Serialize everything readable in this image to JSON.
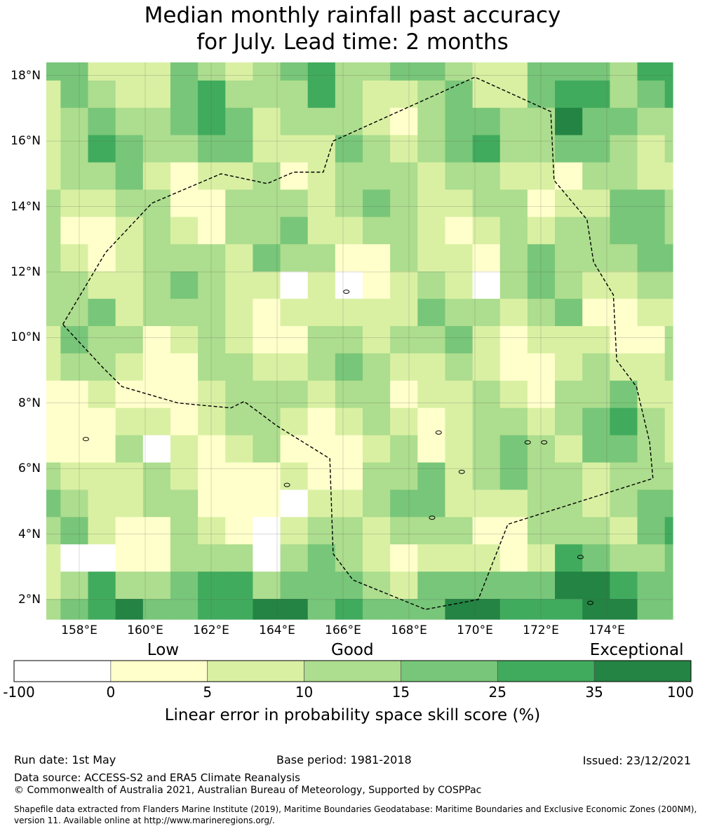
{
  "title": {
    "line1": "Median monthly rainfall past accuracy",
    "line2": "for July. Lead time: 2 months"
  },
  "map": {
    "lat_range": [
      1.4,
      18.4
    ],
    "lon_range": [
      157.0,
      176.0
    ],
    "lat_ticks": [
      {
        "value": 18,
        "label": "18°N"
      },
      {
        "value": 16,
        "label": "16°N"
      },
      {
        "value": 14,
        "label": "14°N"
      },
      {
        "value": 12,
        "label": "12°N"
      },
      {
        "value": 10,
        "label": "10°N"
      },
      {
        "value": 8,
        "label": "8°N"
      },
      {
        "value": 6,
        "label": "6°N"
      },
      {
        "value": 4,
        "label": "4°N"
      },
      {
        "value": 2,
        "label": "2°N"
      }
    ],
    "lon_ticks": [
      {
        "value": 158,
        "label": "158°E"
      },
      {
        "value": 160,
        "label": "160°E"
      },
      {
        "value": 162,
        "label": "162°E"
      },
      {
        "value": 164,
        "label": "164°E"
      },
      {
        "value": 166,
        "label": "166°E"
      },
      {
        "value": 168,
        "label": "168°E"
      },
      {
        "value": 170,
        "label": "170°E"
      },
      {
        "value": 172,
        "label": "172°E"
      },
      {
        "value": 174,
        "label": "174°E"
      }
    ],
    "grid_cell_deg": 0.833,
    "grid": true,
    "eez_boundary": [
      [
        157.5,
        10.4
      ],
      [
        158.8,
        12.6
      ],
      [
        160.2,
        14.1
      ],
      [
        162.3,
        15.0
      ],
      [
        163.7,
        14.7
      ],
      [
        164.5,
        15.05
      ],
      [
        165.4,
        15.05
      ],
      [
        165.7,
        16.0
      ],
      [
        170.0,
        17.95
      ],
      [
        172.3,
        16.9
      ],
      [
        172.4,
        14.8
      ],
      [
        173.4,
        13.6
      ],
      [
        173.6,
        12.3
      ],
      [
        174.2,
        11.3
      ],
      [
        174.3,
        9.3
      ],
      [
        174.9,
        8.5
      ],
      [
        175.3,
        6.8
      ],
      [
        175.4,
        5.7
      ],
      [
        171.0,
        4.3
      ],
      [
        170.1,
        2.0
      ],
      [
        168.5,
        1.7
      ],
      [
        166.3,
        2.6
      ],
      [
        165.7,
        3.4
      ],
      [
        165.6,
        6.3
      ],
      [
        164.0,
        7.3
      ],
      [
        163.0,
        8.05
      ],
      [
        162.6,
        7.85
      ],
      [
        161.0,
        8.0
      ],
      [
        159.3,
        8.5
      ],
      [
        158.7,
        9.1
      ],
      [
        157.5,
        10.4
      ]
    ]
  },
  "colorbar": {
    "categories": [
      {
        "label": "Low",
        "at": 0.22
      },
      {
        "label": "Good",
        "at": 0.5
      },
      {
        "label": "Exceptional",
        "at": 0.92
      }
    ],
    "ticks": [
      "-100",
      "0",
      "5",
      "10",
      "15",
      "25",
      "35",
      "100"
    ],
    "colors": [
      "#ffffff",
      "#ffffcc",
      "#d9f0a3",
      "#addd8e",
      "#78c679",
      "#41ab5d",
      "#238443"
    ],
    "axis_label": "Linear error in probability space skill score (%)"
  },
  "footer": {
    "run_date": "Run date: 1st May",
    "base_period": "Base period: 1981-2018",
    "issued": "Issued: 23/12/2021",
    "data_source": "Data source: ACCESS-S2 and ERA5 Climate Reanalysis",
    "copyright": "© Commonwealth of Australia 2021, Australian Bureau of Meteorology, Supported by COSPPac",
    "shapefile_line1": "Shapefile data extracted from Flanders Marine Institute (2019), Maritime Boundaries Geodatabase: Maritime Boundaries and Exclusive Economic Zones (200NM),",
    "shapefile_line2": "version 11. Available online at http://www.marineregions.org/."
  }
}
